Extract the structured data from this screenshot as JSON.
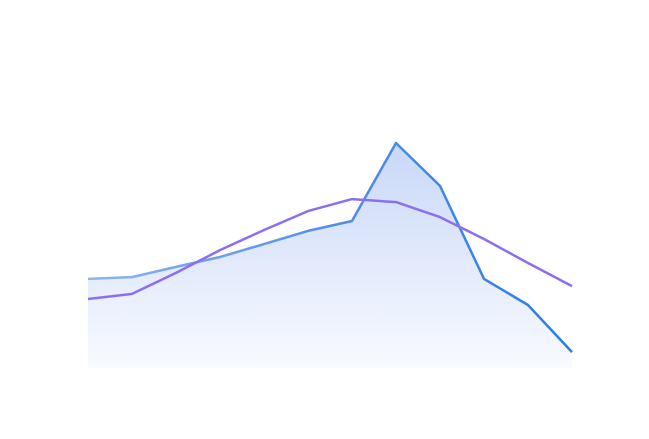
{
  "chart_data": {
    "type": "line",
    "categories": [
      null,
      null,
      null,
      null,
      null,
      null,
      null,
      null,
      null,
      null,
      null,
      null
    ],
    "ylim": [
      0,
      100
    ],
    "series": [
      {
        "color": "#2b7de9",
        "area": true,
        "values": [
          29.7,
          30.3,
          33.7,
          37,
          41.3,
          45.7,
          49,
          75,
          60.7,
          29.7,
          21,
          5.3
        ]
      },
      {
        "color": "#8d6ef0",
        "area": false,
        "values": [
          23,
          24.7,
          31.7,
          39.3,
          46,
          52.3,
          56.3,
          55.3,
          50.3,
          43,
          35,
          27.3
        ]
      }
    ]
  }
}
